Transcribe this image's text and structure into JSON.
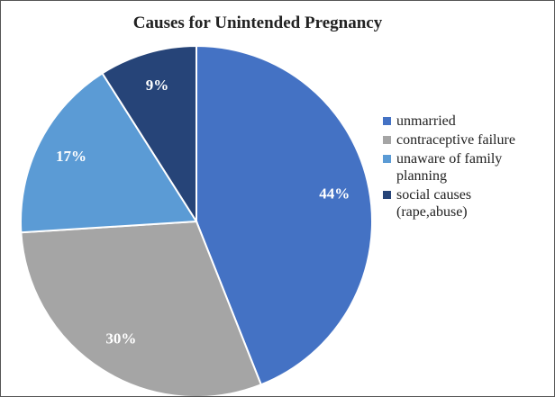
{
  "chart_data": {
    "type": "pie",
    "title": "Causes for Unintended Pregnancy",
    "categories": [
      "unmarried",
      "contraceptive failure",
      "unaware of family planning",
      "social causes (rape,abuse)"
    ],
    "values": [
      44,
      30,
      17,
      9
    ],
    "value_labels": [
      "44%",
      "30%",
      "17%",
      "9%"
    ],
    "colors": [
      "#4472c4",
      "#a5a5a5",
      "#5b9bd5",
      "#264478"
    ],
    "legend": "right"
  }
}
